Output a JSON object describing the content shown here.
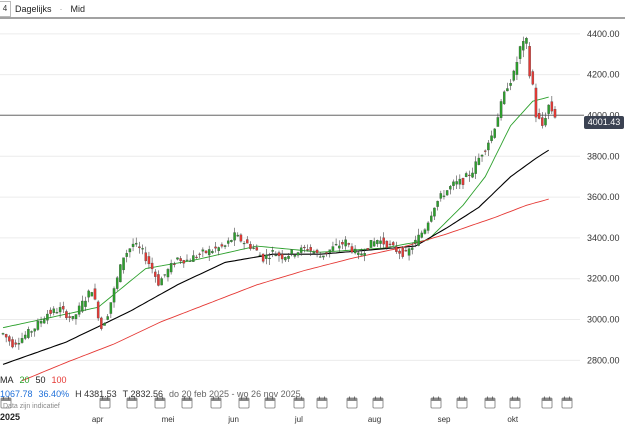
{
  "topbar": {
    "timeframe_box": "4",
    "interval": "Dagelijks",
    "separator": "·",
    "price_type": "Mid"
  },
  "price_badge": "4001.43",
  "legend": {
    "ma_label": "MA",
    "ma1": "20",
    "ma2": "50",
    "ma3": "100"
  },
  "stats": {
    "change": "1067.78",
    "change_pct": "36.40%",
    "high": "H 4381.53",
    "low": "T 2832.56",
    "range": "do 20 feb 2025 - wo 26 nov 2025"
  },
  "notice": "Data zijn indicatief",
  "year_label": "2025",
  "chart_data": {
    "type": "candlestick",
    "y_ticks": [
      2800,
      3000,
      3200,
      3400,
      3600,
      3800,
      4000,
      4200,
      4400
    ],
    "ylim": [
      2700,
      4500
    ],
    "x_labels": [
      {
        "label": "apr",
        "index": 28
      },
      {
        "label": "mei",
        "index": 50
      },
      {
        "label": "jun",
        "index": 71
      },
      {
        "label": "jul",
        "index": 92
      },
      {
        "label": "aug",
        "index": 115
      },
      {
        "label": "sep",
        "index": 137
      },
      {
        "label": "okt",
        "index": 159
      }
    ],
    "current_price": 4001.43,
    "colors": {
      "up": "#2ca02c",
      "down": "#e53935",
      "ma20": "#2ca02c",
      "ma50": "#000000",
      "ma100": "#e53935"
    },
    "anchors": [
      [
        0,
        2930
      ],
      [
        3,
        2880
      ],
      [
        6,
        2910
      ],
      [
        10,
        2960
      ],
      [
        14,
        3030
      ],
      [
        18,
        3050
      ],
      [
        22,
        3000
      ],
      [
        25,
        3080
      ],
      [
        28,
        3150
      ],
      [
        31,
        2960
      ],
      [
        33,
        3030
      ],
      [
        36,
        3200
      ],
      [
        38,
        3310
      ],
      [
        41,
        3370
      ],
      [
        44,
        3330
      ],
      [
        47,
        3250
      ],
      [
        49,
        3180
      ],
      [
        52,
        3240
      ],
      [
        55,
        3300
      ],
      [
        58,
        3290
      ],
      [
        62,
        3320
      ],
      [
        66,
        3340
      ],
      [
        70,
        3360
      ],
      [
        73,
        3410
      ],
      [
        76,
        3380
      ],
      [
        79,
        3350
      ],
      [
        82,
        3300
      ],
      [
        85,
        3330
      ],
      [
        88,
        3310
      ],
      [
        92,
        3330
      ],
      [
        96,
        3350
      ],
      [
        100,
        3310
      ],
      [
        104,
        3350
      ],
      [
        108,
        3380
      ],
      [
        112,
        3310
      ],
      [
        115,
        3360
      ],
      [
        118,
        3390
      ],
      [
        121,
        3370
      ],
      [
        124,
        3340
      ],
      [
        127,
        3320
      ],
      [
        130,
        3380
      ],
      [
        133,
        3450
      ],
      [
        136,
        3560
      ],
      [
        139,
        3620
      ],
      [
        142,
        3660
      ],
      [
        145,
        3680
      ],
      [
        148,
        3730
      ],
      [
        151,
        3820
      ],
      [
        154,
        3900
      ],
      [
        157,
        4050
      ],
      [
        159,
        4150
      ],
      [
        161,
        4200
      ],
      [
        163,
        4330
      ],
      [
        165,
        4360
      ],
      [
        166,
        4200
      ],
      [
        167,
        4150
      ],
      [
        168,
        4000
      ],
      [
        170,
        3950
      ],
      [
        172,
        4050
      ],
      [
        174,
        4001
      ]
    ],
    "moving_averages": {
      "ma20": [
        [
          0,
          2960
        ],
        [
          30,
          3060
        ],
        [
          45,
          3250
        ],
        [
          60,
          3290
        ],
        [
          80,
          3360
        ],
        [
          100,
          3330
        ],
        [
          120,
          3350
        ],
        [
          134,
          3390
        ],
        [
          145,
          3560
        ],
        [
          152,
          3700
        ],
        [
          160,
          3950
        ],
        [
          167,
          4070
        ],
        [
          172,
          4090
        ]
      ],
      "ma50": [
        [
          0,
          2780
        ],
        [
          20,
          2890
        ],
        [
          40,
          3040
        ],
        [
          55,
          3170
        ],
        [
          70,
          3280
        ],
        [
          85,
          3320
        ],
        [
          100,
          3320
        ],
        [
          115,
          3340
        ],
        [
          130,
          3360
        ],
        [
          140,
          3450
        ],
        [
          150,
          3550
        ],
        [
          160,
          3700
        ],
        [
          168,
          3790
        ],
        [
          172,
          3830
        ]
      ],
      "ma100": [
        [
          6,
          2700
        ],
        [
          20,
          2790
        ],
        [
          35,
          2880
        ],
        [
          50,
          2990
        ],
        [
          65,
          3080
        ],
        [
          80,
          3170
        ],
        [
          95,
          3240
        ],
        [
          110,
          3300
        ],
        [
          125,
          3350
        ],
        [
          140,
          3420
        ],
        [
          155,
          3500
        ],
        [
          165,
          3560
        ],
        [
          172,
          3590
        ]
      ]
    }
  }
}
